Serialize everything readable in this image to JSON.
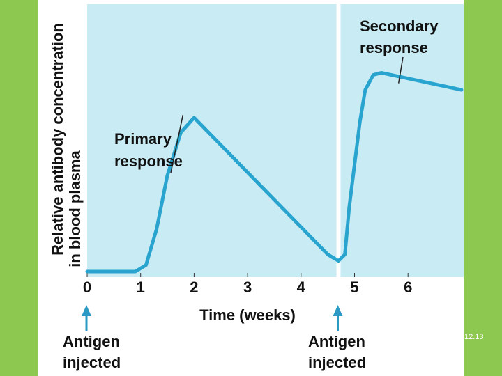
{
  "chart_data": {
    "type": "line",
    "ylabel_lines": [
      "Relative antibody concentration",
      "in blood plasma"
    ],
    "xlabel": "Time (weeks)",
    "x_ticks": [
      0,
      1,
      2,
      3,
      4,
      5,
      6
    ],
    "xlim": [
      0,
      7
    ],
    "ylim": [
      0,
      100
    ],
    "series": [
      {
        "name": "Antibody concentration",
        "points": [
          [
            0,
            0
          ],
          [
            0.9,
            0
          ],
          [
            1.1,
            3
          ],
          [
            1.3,
            20
          ],
          [
            1.5,
            45
          ],
          [
            1.75,
            65
          ],
          [
            2,
            72
          ],
          [
            4.5,
            8
          ],
          [
            4.7,
            5
          ],
          [
            4.82,
            8
          ],
          [
            4.9,
            30
          ],
          [
            5.1,
            70
          ],
          [
            5.2,
            85
          ],
          [
            5.35,
            92
          ],
          [
            5.5,
            93
          ],
          [
            7,
            85
          ]
        ]
      }
    ],
    "annotations": [
      {
        "label_lines": [
          "Primary",
          "response"
        ],
        "point": [
          2.0,
          72
        ]
      },
      {
        "label_lines": [
          "Secondary",
          "response"
        ],
        "point": [
          5.85,
          91
        ]
      }
    ],
    "injection_markers": [
      {
        "x": 0,
        "label_lines": [
          "Antigen",
          "injected"
        ]
      },
      {
        "x": 4.7,
        "label_lines": [
          "Antigen",
          "injected"
        ]
      }
    ],
    "figure_number": "12.13",
    "colors": {
      "plot_background": "#c8ebf4",
      "line": "#29a4cf",
      "arrow": "#2b99c3",
      "page_border": "#8dc850"
    }
  }
}
